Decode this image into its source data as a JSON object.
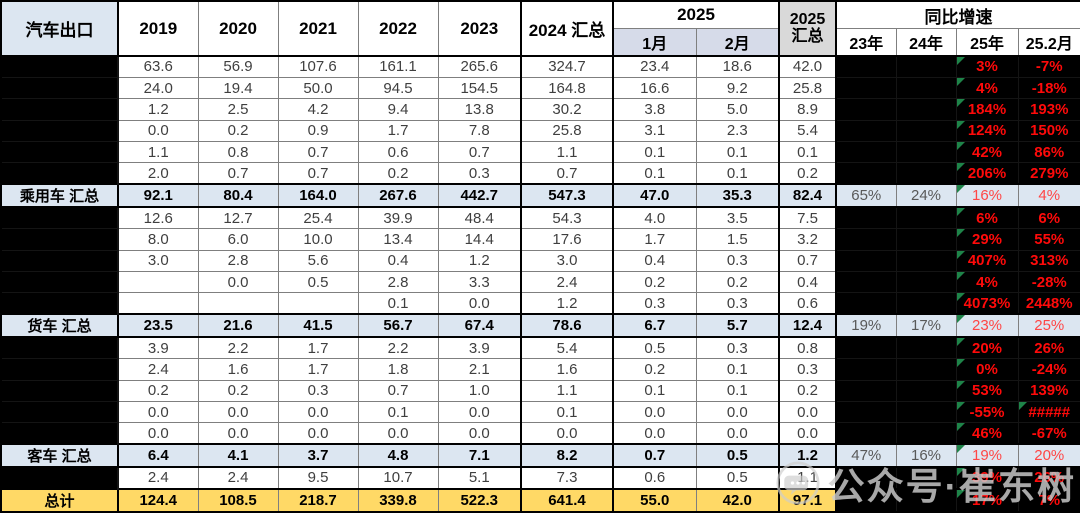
{
  "header": {
    "col_label": "汽车出口",
    "years": [
      "2019",
      "2020",
      "2021",
      "2022",
      "2023"
    ],
    "y2024_label": "2024 汇总",
    "y2025_group": "2025",
    "months": [
      "1月",
      "2月"
    ],
    "y2025_total": "2025 汇总",
    "growth_group": "同比增速",
    "growth_cols": [
      "23年",
      "24年",
      "25年",
      "25.2月"
    ]
  },
  "rows": [
    {
      "type": "data",
      "label": "",
      "values": [
        "63.6",
        "56.9",
        "107.6",
        "161.1",
        "265.6",
        "324.7",
        "23.4",
        "18.6",
        "42.0"
      ],
      "growth": {
        "y23": "",
        "y24": "",
        "y25": "3%",
        "feb": "-7%"
      }
    },
    {
      "type": "data",
      "label": "",
      "values": [
        "24.0",
        "19.4",
        "50.0",
        "94.5",
        "154.5",
        "164.8",
        "16.6",
        "9.2",
        "25.8"
      ],
      "growth": {
        "y23": "",
        "y24": "",
        "y25": "4%",
        "feb": "-18%"
      }
    },
    {
      "type": "data",
      "label": "",
      "values": [
        "1.2",
        "2.5",
        "4.2",
        "9.4",
        "13.8",
        "30.2",
        "3.8",
        "5.0",
        "8.9"
      ],
      "growth": {
        "y23": "",
        "y24": "",
        "y25": "184%",
        "feb": "193%"
      }
    },
    {
      "type": "data",
      "label": "",
      "values": [
        "0.0",
        "0.2",
        "0.9",
        "1.7",
        "7.8",
        "25.8",
        "3.1",
        "2.3",
        "5.4"
      ],
      "growth": {
        "y23": "",
        "y24": "",
        "y25": "124%",
        "feb": "150%"
      }
    },
    {
      "type": "data",
      "label": "",
      "values": [
        "1.1",
        "0.8",
        "0.7",
        "0.6",
        "0.7",
        "1.1",
        "0.1",
        "0.1",
        "0.1"
      ],
      "growth": {
        "y23": "",
        "y24": "",
        "y25": "42%",
        "feb": "86%"
      }
    },
    {
      "type": "data",
      "label": "",
      "values": [
        "2.0",
        "0.7",
        "0.7",
        "0.2",
        "0.3",
        "0.7",
        "0.1",
        "0.1",
        "0.2"
      ],
      "growth": {
        "y23": "",
        "y24": "",
        "y25": "206%",
        "feb": "279%"
      }
    },
    {
      "type": "summary",
      "label": "乘用车 汇总",
      "values": [
        "92.1",
        "80.4",
        "164.0",
        "267.6",
        "442.7",
        "547.3",
        "47.0",
        "35.3",
        "82.4"
      ],
      "growth": {
        "y23": "65%",
        "y24": "24%",
        "y25": "16%",
        "feb": "4%"
      }
    },
    {
      "type": "data",
      "label": "",
      "values": [
        "12.6",
        "12.7",
        "25.4",
        "39.9",
        "48.4",
        "54.3",
        "4.0",
        "3.5",
        "7.5"
      ],
      "growth": {
        "y23": "",
        "y24": "",
        "y25": "6%",
        "feb": "6%"
      }
    },
    {
      "type": "data",
      "label": "",
      "values": [
        "8.0",
        "6.0",
        "10.0",
        "13.4",
        "14.4",
        "17.6",
        "1.7",
        "1.5",
        "3.2"
      ],
      "growth": {
        "y23": "",
        "y24": "",
        "y25": "29%",
        "feb": "55%"
      }
    },
    {
      "type": "data",
      "label": "",
      "values": [
        "3.0",
        "2.8",
        "5.6",
        "0.4",
        "1.2",
        "3.0",
        "0.4",
        "0.3",
        "0.7"
      ],
      "growth": {
        "y23": "",
        "y24": "",
        "y25": "407%",
        "feb": "313%"
      }
    },
    {
      "type": "data",
      "label": "",
      "values": [
        "",
        "0.0",
        "0.5",
        "2.8",
        "3.3",
        "2.4",
        "0.2",
        "0.2",
        "0.4"
      ],
      "growth": {
        "y23": "",
        "y24": "",
        "y25": "4%",
        "feb": "-28%"
      }
    },
    {
      "type": "data",
      "label": "",
      "values": [
        "",
        "",
        "",
        "0.1",
        "0.0",
        "1.2",
        "0.3",
        "0.3",
        "0.6"
      ],
      "growth": {
        "y23": "",
        "y24": "",
        "y25": "4073%",
        "feb": "2448%"
      }
    },
    {
      "type": "summary",
      "label": "货车 汇总",
      "values": [
        "23.5",
        "21.6",
        "41.5",
        "56.7",
        "67.4",
        "78.6",
        "6.7",
        "5.7",
        "12.4"
      ],
      "growth": {
        "y23": "19%",
        "y24": "17%",
        "y25": "23%",
        "feb": "25%"
      }
    },
    {
      "type": "data",
      "label": "",
      "values": [
        "3.9",
        "2.2",
        "1.7",
        "2.2",
        "3.9",
        "5.4",
        "0.5",
        "0.3",
        "0.8"
      ],
      "growth": {
        "y23": "",
        "y24": "",
        "y25": "20%",
        "feb": "26%"
      }
    },
    {
      "type": "data",
      "label": "",
      "values": [
        "2.4",
        "1.6",
        "1.7",
        "1.8",
        "2.1",
        "1.6",
        "0.2",
        "0.1",
        "0.3"
      ],
      "growth": {
        "y23": "",
        "y24": "",
        "y25": "0%",
        "feb": "-24%"
      }
    },
    {
      "type": "data",
      "label": "",
      "values": [
        "0.2",
        "0.2",
        "0.3",
        "0.7",
        "1.0",
        "1.1",
        "0.1",
        "0.1",
        "0.2"
      ],
      "growth": {
        "y23": "",
        "y24": "",
        "y25": "53%",
        "feb": "139%"
      }
    },
    {
      "type": "data",
      "label": "",
      "values": [
        "0.0",
        "0.0",
        "0.0",
        "0.1",
        "0.0",
        "0.1",
        "0.0",
        "0.0",
        "0.0"
      ],
      "growth": {
        "y23": "",
        "y24": "",
        "y25": "-55%",
        "feb": "#####",
        "tri_feb": true
      }
    },
    {
      "type": "data",
      "label": "",
      "values": [
        "0.0",
        "0.0",
        "0.0",
        "0.0",
        "0.0",
        "0.0",
        "0.0",
        "0.0",
        "0.0"
      ],
      "growth": {
        "y23": "",
        "y24": "",
        "y25": "46%",
        "feb": "-67%"
      }
    },
    {
      "type": "summary",
      "label": "客车 汇总",
      "values": [
        "6.4",
        "4.1",
        "3.7",
        "4.8",
        "7.1",
        "8.2",
        "0.7",
        "0.5",
        "1.2"
      ],
      "growth": {
        "y23": "47%",
        "y24": "16%",
        "y25": "19%",
        "feb": "20%"
      }
    },
    {
      "type": "data",
      "label": "",
      "values": [
        "2.4",
        "2.4",
        "9.5",
        "10.7",
        "5.1",
        "7.3",
        "0.6",
        "0.5",
        "1.1"
      ],
      "growth": {
        "y23": "",
        "y24": "",
        "y25": "39%",
        "feb": "26%"
      }
    },
    {
      "type": "total",
      "label": "总计",
      "values": [
        "124.4",
        "108.5",
        "218.7",
        "339.8",
        "522.3",
        "641.4",
        "55.0",
        "42.0",
        "97.1"
      ],
      "growth": {
        "y23": "",
        "y24": "",
        "y25": "17%",
        "feb": "7%"
      }
    }
  ],
  "watermark": {
    "text": "公众号·崔东树"
  },
  "colors": {
    "header_blue": "#DCE6F1",
    "month_header_lavender": "#D6DBE9",
    "grey_header": "#D9D9D9",
    "total_yellow": "#FFD966",
    "redacted_black": "#000000",
    "growth_red": "#FF0A0A",
    "error_triangle_green": "#1E8449"
  }
}
